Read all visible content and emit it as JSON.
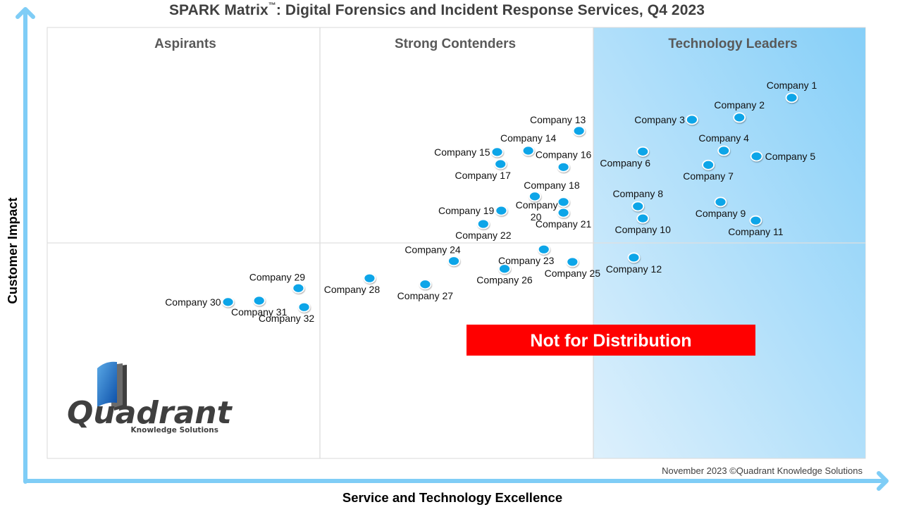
{
  "chart_data": {
    "type": "scatter",
    "title": "SPARK Matrix",
    "title_mark": "™",
    "title_rest": ": Digital Forensics and Incident Response Services, Q4 2023",
    "xlabel": "Service and Technology Excellence",
    "ylabel": "Customer Impact",
    "xlim": [
      0,
      10
    ],
    "ylim": [
      0,
      10
    ],
    "grid": false,
    "x_dividers": [
      3.33,
      6.67
    ],
    "y_dividers": [
      5.0
    ],
    "quadrants": [
      {
        "label": "Aspirants",
        "x_range": [
          0,
          3.33
        ]
      },
      {
        "label": "Strong Contenders",
        "x_range": [
          3.33,
          6.67
        ]
      },
      {
        "label": "Technology Leaders",
        "x_range": [
          6.67,
          10
        ]
      }
    ],
    "marker_color": "#0aa5e8",
    "leaders_fill_colors": [
      "#ddf0fc",
      "#86cff8"
    ],
    "axis_color": "#7fcdf6",
    "points": [
      {
        "name": "Company 1",
        "x": 9.1,
        "y": 8.37,
        "label_pos": "above"
      },
      {
        "name": "Company 2",
        "x": 8.46,
        "y": 7.91,
        "label_pos": "above"
      },
      {
        "name": "Company 3",
        "x": 7.88,
        "y": 7.86,
        "label_pos": "left"
      },
      {
        "name": "Company 4",
        "x": 8.27,
        "y": 7.14,
        "label_pos": "above"
      },
      {
        "name": "Company 5",
        "x": 8.67,
        "y": 7.01,
        "label_pos": "right"
      },
      {
        "name": "Company 6",
        "x": 7.28,
        "y": 7.12,
        "label_pos": "below-left"
      },
      {
        "name": "Company 7",
        "x": 8.08,
        "y": 6.81,
        "label_pos": "below"
      },
      {
        "name": "Company 8",
        "x": 7.22,
        "y": 5.85,
        "label_pos": "above"
      },
      {
        "name": "Company 9",
        "x": 8.23,
        "y": 5.95,
        "label_pos": "below"
      },
      {
        "name": "Company 10",
        "x": 7.28,
        "y": 5.57,
        "label_pos": "below"
      },
      {
        "name": "Company 11",
        "x": 8.66,
        "y": 5.52,
        "label_pos": "below"
      },
      {
        "name": "Company 12",
        "x": 7.17,
        "y": 4.66,
        "label_pos": "below"
      },
      {
        "name": "Company 13",
        "x": 6.5,
        "y": 7.6,
        "label_pos": "above-left"
      },
      {
        "name": "Company 14",
        "x": 5.88,
        "y": 7.14,
        "label_pos": "above"
      },
      {
        "name": "Company 15",
        "x": 5.5,
        "y": 7.11,
        "label_pos": "left"
      },
      {
        "name": "Company 16",
        "x": 6.31,
        "y": 6.76,
        "label_pos": "above"
      },
      {
        "name": "Company 17",
        "x": 5.54,
        "y": 6.83,
        "label_pos": "below-left"
      },
      {
        "name": "Company 18",
        "x": 5.96,
        "y": 6.08,
        "label_pos": "above-right"
      },
      {
        "name": "Company 19",
        "x": 5.55,
        "y": 5.75,
        "label_pos": "left"
      },
      {
        "name": "Company 20",
        "x": 6.31,
        "y": 5.95,
        "label_pos": "left-wrap"
      },
      {
        "name": "Company 21",
        "x": 6.31,
        "y": 5.7,
        "label_pos": "below"
      },
      {
        "name": "Company 22",
        "x": 5.33,
        "y": 5.44,
        "label_pos": "below"
      },
      {
        "name": "Company 23",
        "x": 6.07,
        "y": 4.85,
        "label_pos": "below-left"
      },
      {
        "name": "Company 24",
        "x": 4.97,
        "y": 4.58,
        "label_pos": "above-left"
      },
      {
        "name": "Company 25",
        "x": 6.42,
        "y": 4.56,
        "label_pos": "below"
      },
      {
        "name": "Company 26",
        "x": 5.59,
        "y": 4.4,
        "label_pos": "below"
      },
      {
        "name": "Company 27",
        "x": 4.62,
        "y": 4.04,
        "label_pos": "below"
      },
      {
        "name": "Company 28",
        "x": 3.94,
        "y": 4.18,
        "label_pos": "below-left"
      },
      {
        "name": "Company 29",
        "x": 3.07,
        "y": 3.95,
        "label_pos": "above-left"
      },
      {
        "name": "Company 30",
        "x": 2.21,
        "y": 3.63,
        "label_pos": "left"
      },
      {
        "name": "Company 31",
        "x": 2.59,
        "y": 3.66,
        "label_pos": "below"
      },
      {
        "name": "Company 32",
        "x": 3.14,
        "y": 3.51,
        "label_pos": "below-left"
      }
    ],
    "annotations": {
      "watermark": "Not for Distribution",
      "watermark_color": "#ff0000",
      "footer": "November 2023 ©Quadrant Knowledge Solutions"
    }
  },
  "logo": {
    "name": "Quadrant",
    "tagline": "Knowledge Solutions"
  }
}
